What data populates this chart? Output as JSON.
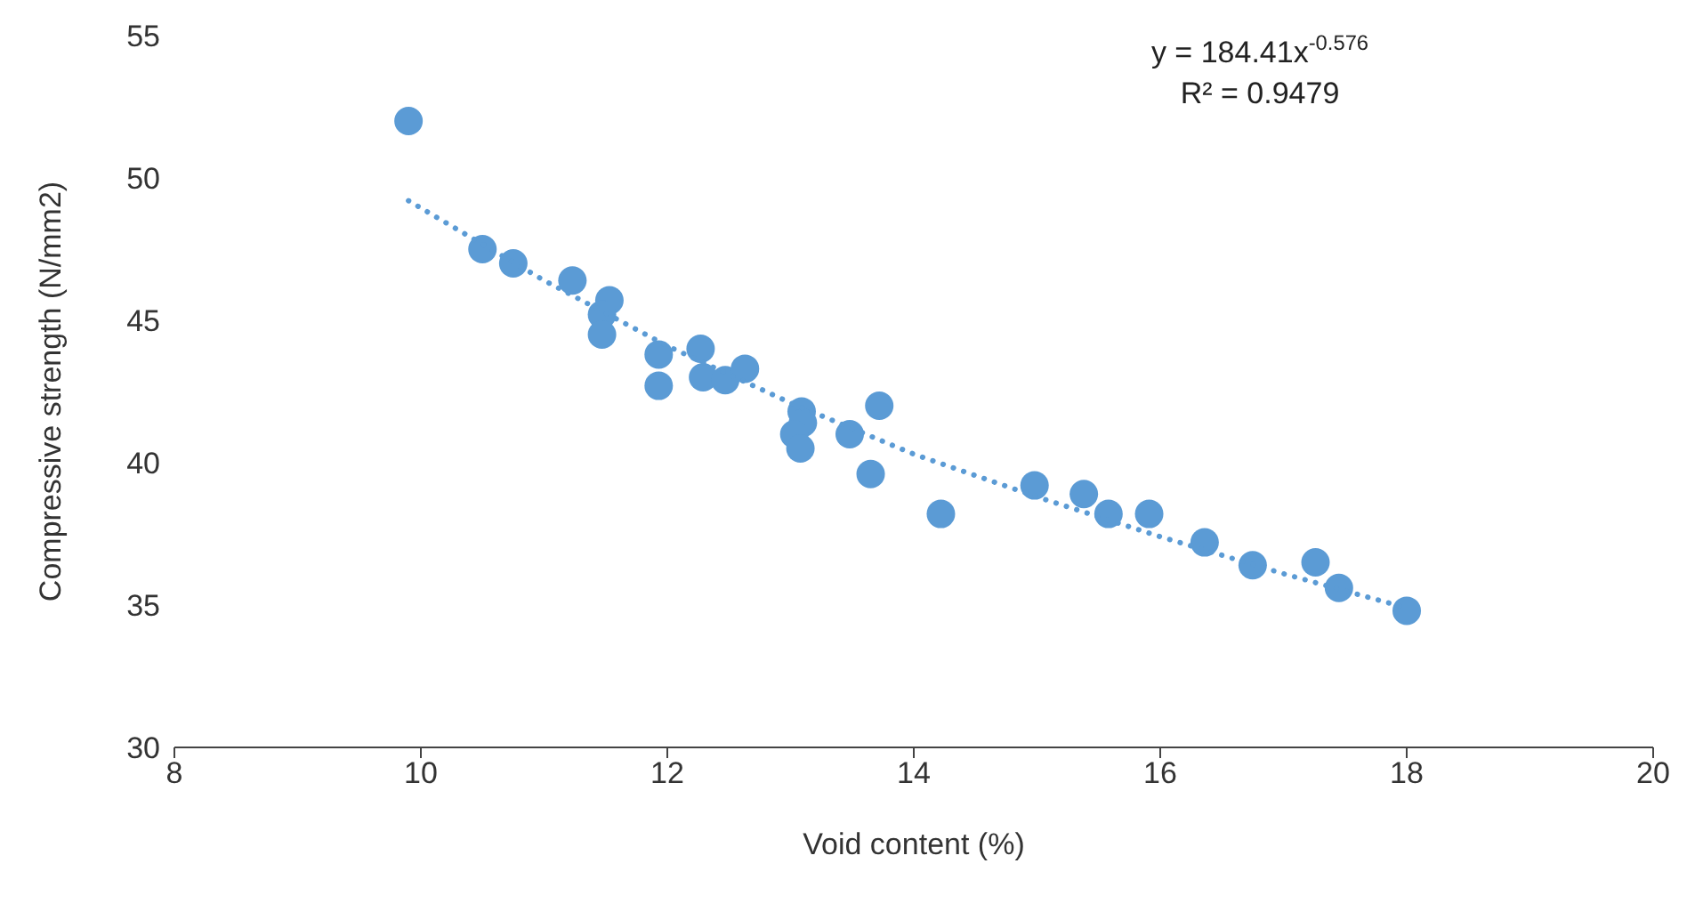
{
  "chart_data": {
    "type": "scatter",
    "xlabel": "Void content (%)",
    "ylabel": "Compressive strength (N/mm2)",
    "xlim": [
      8,
      20
    ],
    "xticks": [
      8,
      10,
      12,
      14,
      16,
      18,
      20
    ],
    "ylim": [
      30,
      55
    ],
    "yticks": [
      30,
      35,
      40,
      45,
      50,
      55
    ],
    "grid": false,
    "legend": false,
    "annotations": [
      "y = 184.41x$^{-0.576}$",
      "R² = 0.9479"
    ],
    "series": [
      {
        "type": "scatter",
        "color": "#5b9bd5",
        "marker": "circle",
        "x": [
          9.9,
          10.5,
          10.75,
          11.23,
          11.53,
          11.47,
          11.47,
          11.93,
          11.93,
          12.27,
          12.29,
          12.47,
          12.63,
          13.09,
          13.1,
          13.03,
          13.08,
          13.48,
          13.72,
          13.65,
          14.22,
          14.98,
          15.38,
          15.58,
          15.91,
          16.36,
          16.75,
          17.26,
          17.45,
          18.0
        ],
        "values": [
          52.0,
          47.5,
          47.0,
          46.4,
          45.7,
          45.2,
          44.5,
          43.8,
          42.7,
          44.0,
          43.0,
          42.9,
          43.3,
          41.8,
          41.4,
          41.0,
          40.5,
          41.0,
          42.0,
          39.6,
          38.2,
          39.2,
          38.9,
          38.2,
          38.2,
          37.2,
          36.4,
          36.5,
          35.6,
          34.8
        ]
      },
      {
        "type": "line",
        "color": "#5b9bd5",
        "line_style": "dotted",
        "marker": "none",
        "x": [
          9.9,
          11,
          12,
          13,
          14,
          15,
          16,
          17,
          18
        ],
        "values": [
          49.2,
          46.4,
          44.1,
          42.1,
          40.3,
          38.8,
          37.4,
          36.1,
          34.9
        ]
      }
    ]
  }
}
